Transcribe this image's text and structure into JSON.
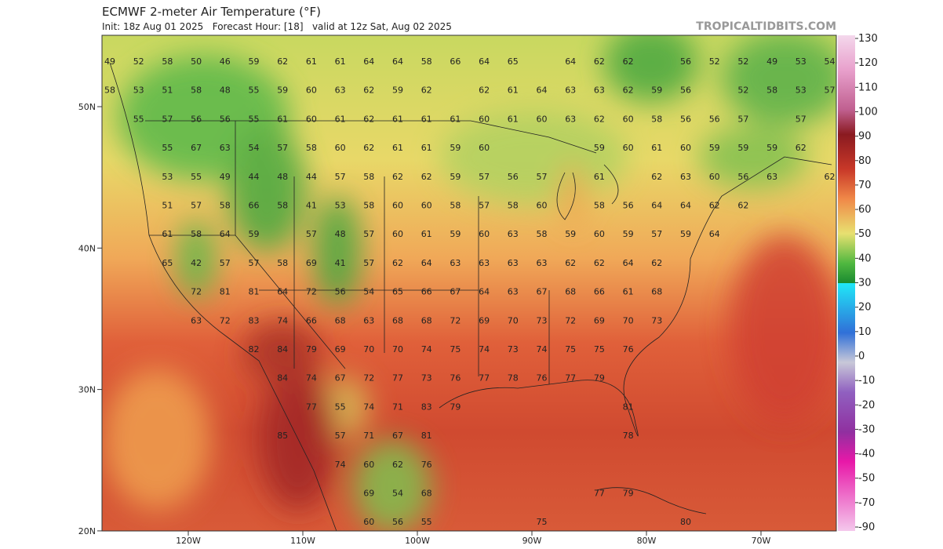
{
  "header": {
    "title": "ECMWF 2-meter Air Temperature (°F)",
    "subtitle": "Init: 18z Aug 01 2025   Forecast Hour: [18]   valid at 12z Sat, Aug 02 2025",
    "source": "TROPICALTIDBITS.COM"
  },
  "map": {
    "lat_ticks": [
      {
        "value": 50,
        "label": "50N"
      },
      {
        "value": 40,
        "label": "40N"
      },
      {
        "value": 30,
        "label": "30N"
      },
      {
        "value": 20,
        "label": "20N"
      }
    ],
    "lon_ticks": [
      {
        "value": -120,
        "label": "120W"
      },
      {
        "value": -110,
        "label": "110W"
      },
      {
        "value": -100,
        "label": "100W"
      },
      {
        "value": -90,
        "label": "90W"
      },
      {
        "value": -80,
        "label": "80W"
      },
      {
        "value": -70,
        "label": "70W"
      }
    ],
    "grid": [
      [
        49,
        52,
        58,
        50,
        46,
        59,
        62,
        61,
        61,
        64,
        64,
        58,
        66,
        64,
        65,
        null,
        64,
        62,
        62,
        null,
        56,
        52,
        52,
        49,
        53,
        54
      ],
      [
        58,
        53,
        51,
        58,
        48,
        55,
        59,
        60,
        63,
        62,
        59,
        62,
        null,
        62,
        61,
        64,
        63,
        63,
        62,
        59,
        56,
        null,
        52,
        58,
        53,
        57
      ],
      [
        null,
        55,
        57,
        56,
        56,
        55,
        61,
        60,
        61,
        62,
        61,
        61,
        61,
        60,
        61,
        60,
        63,
        62,
        60,
        58,
        56,
        56,
        57,
        null,
        57,
        null
      ],
      [
        null,
        null,
        55,
        67,
        63,
        54,
        57,
        58,
        60,
        62,
        61,
        61,
        59,
        60,
        null,
        null,
        null,
        59,
        60,
        61,
        60,
        59,
        59,
        59,
        62,
        null
      ],
      [
        null,
        null,
        53,
        55,
        49,
        44,
        48,
        44,
        57,
        58,
        62,
        62,
        59,
        57,
        56,
        57,
        null,
        61,
        null,
        62,
        63,
        60,
        56,
        63,
        null,
        62
      ],
      [
        null,
        null,
        51,
        57,
        58,
        66,
        58,
        41,
        53,
        58,
        60,
        60,
        58,
        57,
        58,
        60,
        null,
        58,
        56,
        64,
        64,
        62,
        62,
        null,
        null,
        null
      ],
      [
        null,
        null,
        61,
        58,
        64,
        59,
        null,
        57,
        48,
        57,
        60,
        61,
        59,
        60,
        63,
        58,
        59,
        60,
        59,
        57,
        59,
        64,
        null,
        null,
        null,
        null
      ],
      [
        null,
        null,
        65,
        42,
        57,
        57,
        58,
        69,
        41,
        57,
        62,
        64,
        63,
        63,
        63,
        63,
        62,
        62,
        64,
        62,
        null,
        null,
        null,
        null,
        null,
        null
      ],
      [
        null,
        null,
        null,
        72,
        81,
        81,
        64,
        72,
        56,
        54,
        65,
        66,
        67,
        64,
        63,
        67,
        68,
        66,
        61,
        68,
        null,
        null,
        null,
        null,
        null,
        null
      ],
      [
        null,
        null,
        null,
        63,
        72,
        83,
        74,
        66,
        68,
        63,
        68,
        68,
        72,
        69,
        70,
        73,
        72,
        69,
        70,
        73,
        null,
        null,
        null,
        null,
        null,
        null
      ],
      [
        null,
        null,
        null,
        null,
        null,
        82,
        84,
        79,
        69,
        70,
        70,
        74,
        75,
        74,
        73,
        74,
        75,
        75,
        76,
        null,
        null,
        null,
        null,
        null,
        null,
        null
      ],
      [
        null,
        null,
        null,
        null,
        null,
        null,
        84,
        74,
        67,
        72,
        77,
        73,
        76,
        77,
        78,
        76,
        77,
        79,
        null,
        null,
        null,
        null,
        null,
        null,
        null,
        null
      ],
      [
        null,
        null,
        null,
        null,
        null,
        null,
        null,
        77,
        55,
        74,
        71,
        83,
        79,
        null,
        null,
        null,
        null,
        null,
        81,
        null,
        null,
        null,
        null,
        null,
        null,
        null
      ],
      [
        null,
        null,
        null,
        null,
        null,
        null,
        85,
        null,
        57,
        71,
        67,
        81,
        null,
        null,
        null,
        null,
        null,
        null,
        78,
        null,
        null,
        null,
        null,
        null,
        null,
        null
      ],
      [
        null,
        null,
        null,
        null,
        null,
        null,
        null,
        null,
        74,
        60,
        62,
        76,
        null,
        null,
        null,
        null,
        null,
        null,
        null,
        null,
        null,
        null,
        null,
        null,
        null,
        null
      ],
      [
        null,
        null,
        null,
        null,
        null,
        null,
        null,
        null,
        null,
        69,
        54,
        68,
        null,
        null,
        null,
        null,
        null,
        77,
        79,
        null,
        null,
        null,
        null,
        null,
        null,
        null
      ],
      [
        null,
        null,
        null,
        null,
        null,
        null,
        null,
        null,
        null,
        60,
        56,
        55,
        null,
        null,
        null,
        75,
        null,
        null,
        null,
        null,
        80,
        null,
        null,
        null,
        null,
        null
      ]
    ]
  },
  "colorbar": {
    "labels": [
      130,
      120,
      110,
      100,
      90,
      80,
      70,
      60,
      50,
      40,
      30,
      20,
      10,
      0,
      -10,
      -20,
      -30,
      -40,
      -50,
      -70,
      -90
    ]
  }
}
